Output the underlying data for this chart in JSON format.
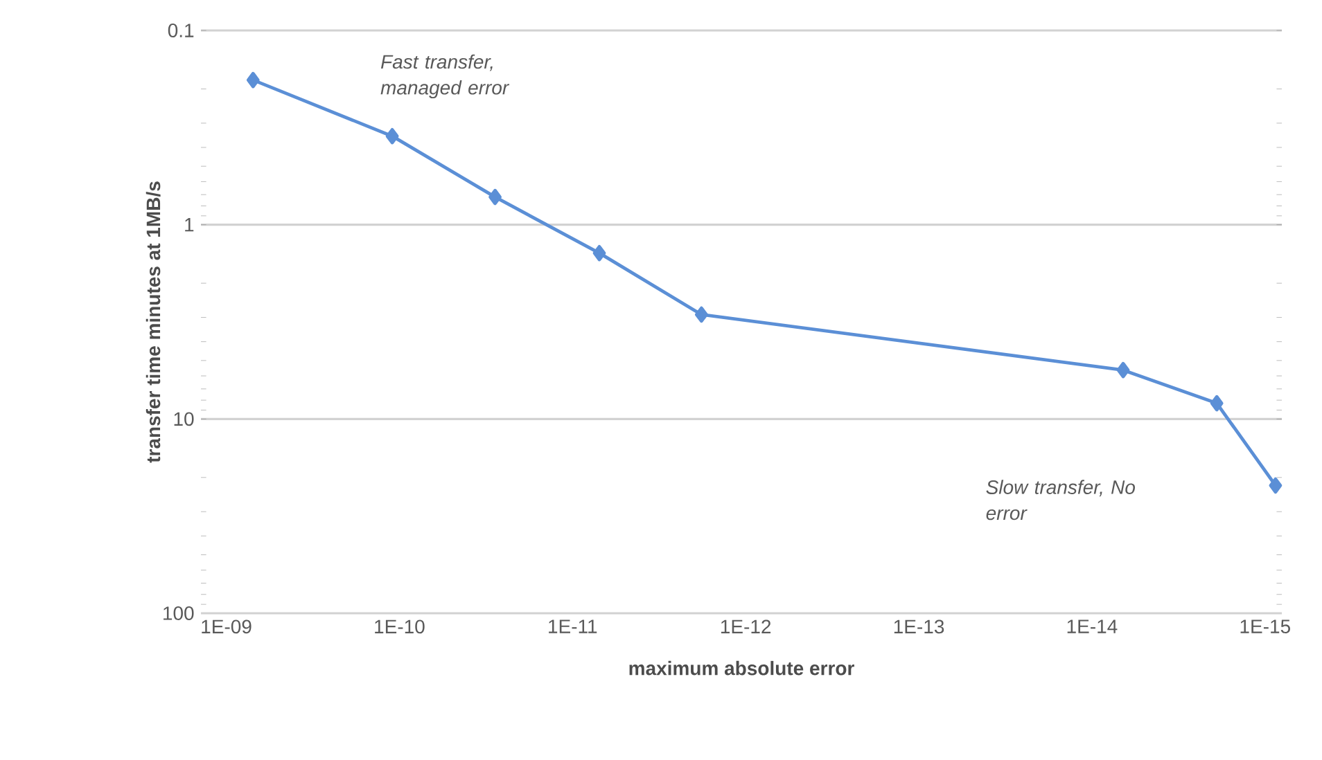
{
  "chart_data": {
    "type": "line",
    "xlabel": "maximum absolute error",
    "ylabel": "transfer time minutes at 1MB/s",
    "x": [
      7e-10,
      1.1e-10,
      2.8e-11,
      7e-12,
      1.8e-12,
      6.6e-15,
      1.9e-15,
      8.7e-16
    ],
    "series": [
      {
        "color": "#5b8fd6",
        "values": [
          0.18,
          0.35,
          0.72,
          1.4,
          2.9,
          5.6,
          8.3,
          22
        ]
      }
    ],
    "log": "xy",
    "xlim": [
      1.4e-09,
      8e-16
    ],
    "ylim": [
      100,
      0.1
    ],
    "xticks": [
      {
        "value": 1e-09,
        "label": "1E-09"
      },
      {
        "value": 1e-10,
        "label": "1E-10"
      },
      {
        "value": 1e-11,
        "label": "1E-11"
      },
      {
        "value": 1e-12,
        "label": "1E-12"
      },
      {
        "value": 1e-13,
        "label": "1E-13"
      },
      {
        "value": 1e-14,
        "label": "1E-14"
      },
      {
        "value": 1e-15,
        "label": "1E-15"
      }
    ],
    "yticks": [
      0.1,
      1,
      10,
      100
    ],
    "grid": "y",
    "marker": "diamond",
    "line_style": "solid",
    "annotations": [
      "Fast transfer, managed error",
      "Slow transfer, No error"
    ]
  }
}
